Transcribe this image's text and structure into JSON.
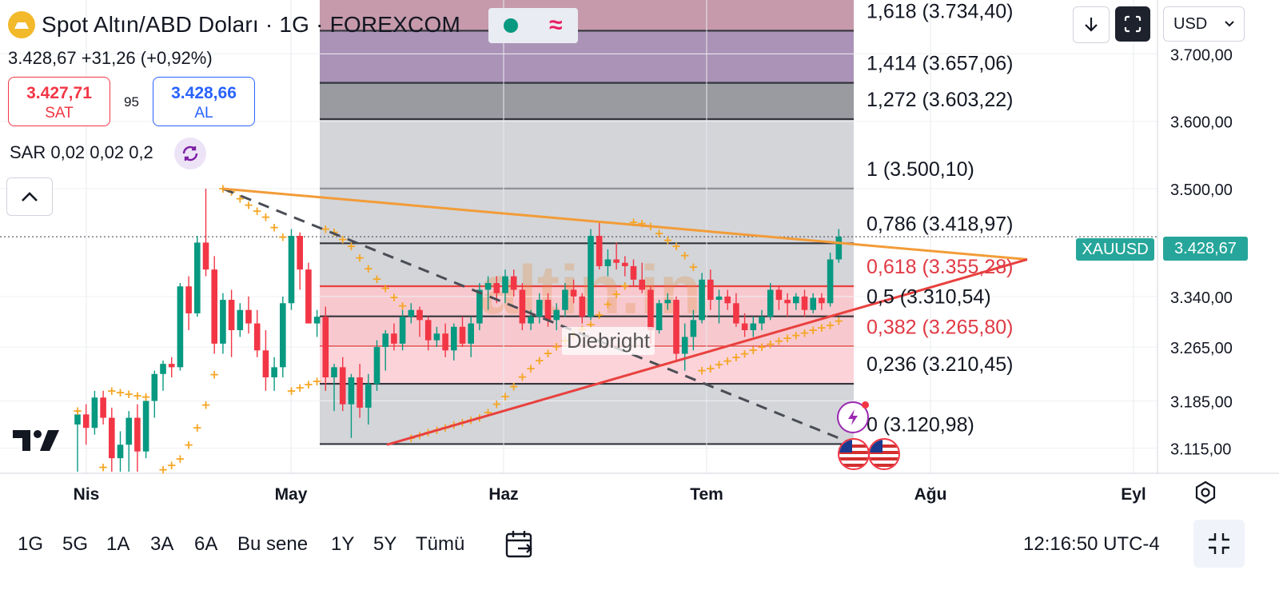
{
  "header": {
    "title": "Spot Altın/ABD Doları · 1G · FOREXCOM",
    "last_price": "3.428,67",
    "change": "+31,26",
    "change_pct": "(+0,92%)",
    "sell_price": "3.427,71",
    "sell_label": "SAT",
    "spread": "95",
    "buy_price": "3.428,66",
    "buy_label": "AL",
    "indicator": "SAR 0,02 0,02 0,2",
    "currency": "USD",
    "wave_symbol": "≈"
  },
  "colors": {
    "up": "#089981",
    "down": "#f23645",
    "sar": "#f5a623",
    "trend_orange": "#f29c38",
    "trend_red": "#e8413e"
  },
  "icons": [
    "gold-logo-icon",
    "status-dot-icon",
    "wave-icon",
    "sync-icon",
    "chevron-up-icon",
    "download-icon",
    "expand-icon",
    "chevron-down-icon",
    "tradingview-logo-icon",
    "calendar-icon",
    "settings-icon",
    "fullscreen-exit-icon",
    "lightning-alert-icon",
    "us-flag-icon"
  ],
  "price_scale": {
    "labels": [
      "3.700,00",
      "3.600,00",
      "3.500,00",
      "3.340,00",
      "3.265,00",
      "3.185,00",
      "3.115,00"
    ],
    "symbol_tag": "XAUUSD",
    "price_tag": "3.428,67"
  },
  "time_axis": {
    "labels": [
      "Nis",
      "May",
      "Haz",
      "Tem",
      "Ağu",
      "Eyl"
    ]
  },
  "fibonacci": {
    "levels": [
      {
        "label": "1,618 (3.734,40)",
        "color": "#131722"
      },
      {
        "label": "1,414 (3.657,06)",
        "color": "#131722"
      },
      {
        "label": "1,272 (3.603,22)",
        "color": "#131722"
      },
      {
        "label": "1 (3.500,10)",
        "color": "#131722"
      },
      {
        "label": "0,786 (3.418,97)",
        "color": "#131722"
      },
      {
        "label": "0,618 (3.355,28)",
        "color": "#e03a45"
      },
      {
        "label": "0,5 (3.310,54)",
        "color": "#131722"
      },
      {
        "label": "0,382 (3.265,80)",
        "color": "#e03a45"
      },
      {
        "label": "0,236 (3.210,45)",
        "color": "#131722"
      },
      {
        "label": "0 (3.120,98)",
        "color": "#131722"
      }
    ]
  },
  "watermark": {
    "brand": "altin.in",
    "credit": "Diebright"
  },
  "ranges": [
    "1G",
    "5G",
    "1A",
    "3A",
    "6A",
    "Bu sene",
    "1Y",
    "5Y",
    "Tümü"
  ],
  "clock": "12:16:50 UTC-4",
  "chart_data": {
    "type": "candlestick",
    "symbol": "XAUUSD",
    "interval": "1G",
    "ylim": [
      3080,
      3780
    ],
    "candles": [
      {
        "o": 3150,
        "h": 3170,
        "l": 3080,
        "c": 3165
      },
      {
        "o": 3165,
        "h": 3180,
        "l": 3120,
        "c": 3145
      },
      {
        "o": 3145,
        "h": 3200,
        "l": 3135,
        "c": 3190
      },
      {
        "o": 3190,
        "h": 3200,
        "l": 3150,
        "c": 3160
      },
      {
        "o": 3160,
        "h": 3175,
        "l": 3080,
        "c": 3100
      },
      {
        "o": 3100,
        "h": 3140,
        "l": 3080,
        "c": 3120
      },
      {
        "o": 3120,
        "h": 3170,
        "l": 3080,
        "c": 3160
      },
      {
        "o": 3160,
        "h": 3180,
        "l": 3080,
        "c": 3110
      },
      {
        "o": 3110,
        "h": 3190,
        "l": 3100,
        "c": 3185
      },
      {
        "o": 3185,
        "h": 3230,
        "l": 3160,
        "c": 3225
      },
      {
        "o": 3225,
        "h": 3245,
        "l": 3200,
        "c": 3240
      },
      {
        "o": 3240,
        "h": 3250,
        "l": 3220,
        "c": 3235
      },
      {
        "o": 3235,
        "h": 3360,
        "l": 3230,
        "c": 3355
      },
      {
        "o": 3355,
        "h": 3370,
        "l": 3290,
        "c": 3315
      },
      {
        "o": 3315,
        "h": 3430,
        "l": 3310,
        "c": 3420
      },
      {
        "o": 3420,
        "h": 3500,
        "l": 3370,
        "c": 3380
      },
      {
        "o": 3380,
        "h": 3400,
        "l": 3255,
        "c": 3270
      },
      {
        "o": 3270,
        "h": 3345,
        "l": 3255,
        "c": 3335
      },
      {
        "o": 3335,
        "h": 3350,
        "l": 3250,
        "c": 3290
      },
      {
        "o": 3290,
        "h": 3330,
        "l": 3280,
        "c": 3320
      },
      {
        "o": 3320,
        "h": 3340,
        "l": 3285,
        "c": 3300
      },
      {
        "o": 3300,
        "h": 3320,
        "l": 3250,
        "c": 3260
      },
      {
        "o": 3260,
        "h": 3290,
        "l": 3200,
        "c": 3220
      },
      {
        "o": 3220,
        "h": 3250,
        "l": 3200,
        "c": 3235
      },
      {
        "o": 3235,
        "h": 3340,
        "l": 3220,
        "c": 3330
      },
      {
        "o": 3330,
        "h": 3440,
        "l": 3320,
        "c": 3430
      },
      {
        "o": 3430,
        "h": 3435,
        "l": 3350,
        "c": 3380
      },
      {
        "o": 3380,
        "h": 3390,
        "l": 3300,
        "c": 3300
      },
      {
        "o": 3300,
        "h": 3320,
        "l": 3280,
        "c": 3310
      },
      {
        "o": 3310,
        "h": 3325,
        "l": 3200,
        "c": 3220
      },
      {
        "o": 3220,
        "h": 3240,
        "l": 3170,
        "c": 3235
      },
      {
        "o": 3235,
        "h": 3250,
        "l": 3170,
        "c": 3180
      },
      {
        "o": 3180,
        "h": 3225,
        "l": 3130,
        "c": 3220
      },
      {
        "o": 3220,
        "h": 3240,
        "l": 3160,
        "c": 3175
      },
      {
        "o": 3175,
        "h": 3225,
        "l": 3150,
        "c": 3210
      },
      {
        "o": 3210,
        "h": 3275,
        "l": 3200,
        "c": 3265
      },
      {
        "o": 3265,
        "h": 3290,
        "l": 3230,
        "c": 3285
      },
      {
        "o": 3285,
        "h": 3300,
        "l": 3260,
        "c": 3270
      },
      {
        "o": 3270,
        "h": 3320,
        "l": 3260,
        "c": 3310
      },
      {
        "o": 3310,
        "h": 3330,
        "l": 3300,
        "c": 3320
      },
      {
        "o": 3320,
        "h": 3325,
        "l": 3280,
        "c": 3305
      },
      {
        "o": 3305,
        "h": 3310,
        "l": 3260,
        "c": 3275
      },
      {
        "o": 3275,
        "h": 3295,
        "l": 3265,
        "c": 3285
      },
      {
        "o": 3285,
        "h": 3300,
        "l": 3250,
        "c": 3260
      },
      {
        "o": 3260,
        "h": 3300,
        "l": 3245,
        "c": 3295
      },
      {
        "o": 3295,
        "h": 3310,
        "l": 3265,
        "c": 3270
      },
      {
        "o": 3270,
        "h": 3310,
        "l": 3250,
        "c": 3300
      },
      {
        "o": 3300,
        "h": 3360,
        "l": 3290,
        "c": 3350
      },
      {
        "o": 3350,
        "h": 3370,
        "l": 3320,
        "c": 3360
      },
      {
        "o": 3360,
        "h": 3370,
        "l": 3330,
        "c": 3345
      },
      {
        "o": 3345,
        "h": 3380,
        "l": 3330,
        "c": 3370
      },
      {
        "o": 3370,
        "h": 3380,
        "l": 3340,
        "c": 3350
      },
      {
        "o": 3350,
        "h": 3360,
        "l": 3290,
        "c": 3300
      },
      {
        "o": 3300,
        "h": 3320,
        "l": 3290,
        "c": 3310
      },
      {
        "o": 3310,
        "h": 3345,
        "l": 3300,
        "c": 3335
      },
      {
        "o": 3335,
        "h": 3345,
        "l": 3295,
        "c": 3305
      },
      {
        "o": 3305,
        "h": 3330,
        "l": 3290,
        "c": 3320
      },
      {
        "o": 3320,
        "h": 3360,
        "l": 3310,
        "c": 3350
      },
      {
        "o": 3350,
        "h": 3365,
        "l": 3330,
        "c": 3340
      },
      {
        "o": 3340,
        "h": 3345,
        "l": 3300,
        "c": 3310
      },
      {
        "o": 3310,
        "h": 3440,
        "l": 3305,
        "c": 3430
      },
      {
        "o": 3430,
        "h": 3450,
        "l": 3380,
        "c": 3385
      },
      {
        "o": 3385,
        "h": 3410,
        "l": 3370,
        "c": 3395
      },
      {
        "o": 3395,
        "h": 3420,
        "l": 3380,
        "c": 3390
      },
      {
        "o": 3390,
        "h": 3400,
        "l": 3370,
        "c": 3385
      },
      {
        "o": 3385,
        "h": 3395,
        "l": 3355,
        "c": 3365
      },
      {
        "o": 3365,
        "h": 3390,
        "l": 3345,
        "c": 3350
      },
      {
        "o": 3350,
        "h": 3355,
        "l": 3270,
        "c": 3290
      },
      {
        "o": 3290,
        "h": 3335,
        "l": 3285,
        "c": 3330
      },
      {
        "o": 3330,
        "h": 3345,
        "l": 3320,
        "c": 3335
      },
      {
        "o": 3335,
        "h": 3340,
        "l": 3245,
        "c": 3255
      },
      {
        "o": 3255,
        "h": 3300,
        "l": 3230,
        "c": 3280
      },
      {
        "o": 3280,
        "h": 3320,
        "l": 3260,
        "c": 3305
      },
      {
        "o": 3305,
        "h": 3375,
        "l": 3300,
        "c": 3365
      },
      {
        "o": 3365,
        "h": 3380,
        "l": 3320,
        "c": 3335
      },
      {
        "o": 3335,
        "h": 3350,
        "l": 3300,
        "c": 3340
      },
      {
        "o": 3340,
        "h": 3350,
        "l": 3320,
        "c": 3330
      },
      {
        "o": 3330,
        "h": 3345,
        "l": 3295,
        "c": 3300
      },
      {
        "o": 3300,
        "h": 3315,
        "l": 3280,
        "c": 3290
      },
      {
        "o": 3290,
        "h": 3310,
        "l": 3280,
        "c": 3300
      },
      {
        "o": 3300,
        "h": 3320,
        "l": 3290,
        "c": 3310
      },
      {
        "o": 3310,
        "h": 3360,
        "l": 3305,
        "c": 3350
      },
      {
        "o": 3350,
        "h": 3355,
        "l": 3320,
        "c": 3335
      },
      {
        "o": 3335,
        "h": 3345,
        "l": 3310,
        "c": 3330
      },
      {
        "o": 3330,
        "h": 3345,
        "l": 3320,
        "c": 3340
      },
      {
        "o": 3340,
        "h": 3350,
        "l": 3310,
        "c": 3320
      },
      {
        "o": 3320,
        "h": 3345,
        "l": 3315,
        "c": 3338
      },
      {
        "o": 3338,
        "h": 3345,
        "l": 3320,
        "c": 3330
      },
      {
        "o": 3330,
        "h": 3405,
        "l": 3325,
        "c": 3395
      },
      {
        "o": 3395,
        "h": 3440,
        "l": 3390,
        "c": 3428.67
      }
    ]
  }
}
